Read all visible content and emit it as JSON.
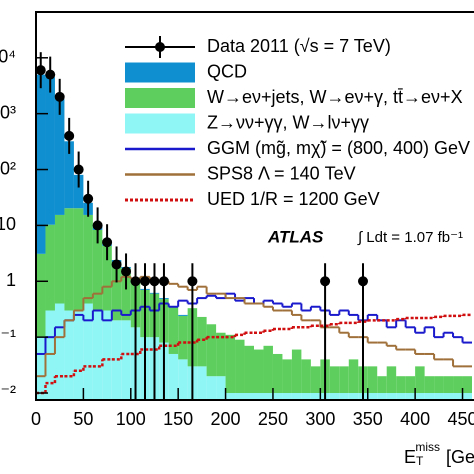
{
  "chart_data": {
    "type": "stacked_histogram",
    "bins": [
      0,
      10,
      20,
      30,
      40,
      50,
      60,
      70,
      80,
      90,
      100,
      110,
      120,
      130,
      140,
      150,
      160,
      170,
      180,
      190,
      200,
      210,
      220,
      230,
      240,
      250,
      260,
      270,
      280,
      290,
      300,
      310,
      320,
      330,
      340,
      350,
      360,
      370,
      380,
      390,
      400,
      410,
      420,
      430,
      440,
      450,
      460
    ],
    "series": [
      {
        "name": "QCD",
        "color": "#0f8fcf",
        "style": "stack",
        "values": [
          5000,
          4500,
          1800,
          300,
          60,
          10,
          2,
          0.5,
          0.2,
          0.1,
          0.05,
          0.03,
          0.02,
          0.02,
          0.01,
          0.01,
          0,
          0,
          0,
          0,
          0,
          0,
          0,
          0,
          0,
          0,
          0,
          0,
          0,
          0,
          0,
          0,
          0,
          0,
          0,
          0,
          0,
          0,
          0,
          0,
          0,
          0,
          0,
          0,
          0,
          0
        ]
      },
      {
        "name": "W→eν+jets, W→eν+γ, tt̄→eν+X",
        "color": "#5ecf5e",
        "style": "stack",
        "values": [
          3,
          10,
          15,
          20,
          20,
          15,
          8,
          4,
          2,
          1.5,
          0.8,
          0.6,
          0.5,
          0.4,
          0.3,
          0.2,
          0.3,
          0.2,
          0.15,
          0.1,
          0.1,
          0.08,
          0.06,
          0.05,
          0.06,
          0.04,
          0.03,
          0.05,
          0.03,
          0.02,
          0.03,
          0.02,
          0.02,
          0.03,
          0.02,
          0.02,
          0.01,
          0.02,
          0.01,
          0.01,
          0.02,
          0.01,
          0.01,
          0.01,
          0.01,
          0.01
        ]
      },
      {
        "name": "Z→νν+γγ, W→lν+γγ",
        "color": "#8ff5f5",
        "style": "stack",
        "values": [
          0.1,
          0.3,
          0.4,
          0.3,
          0.3,
          0.4,
          0.3,
          0.3,
          0.2,
          0.2,
          0.15,
          0.1,
          0.1,
          0.08,
          0.05,
          0.04,
          0.03,
          0.03,
          0.02,
          0.02,
          0.01,
          0.01,
          0.01,
          0.01,
          0.01,
          0.01,
          0.01,
          0.01,
          0.01,
          0.01,
          0.01,
          0.01,
          0.01,
          0.01,
          0.01,
          0.01,
          0.01,
          0.01,
          0.01,
          0.01,
          0.01,
          0.01,
          0.01,
          0.01,
          0.01,
          0.01
        ]
      },
      {
        "name": "GGM (mg̃, mχ̃) = (800, 400) GeV",
        "color": "#1a1acc",
        "style": "line",
        "values": [
          0.05,
          0.1,
          0.15,
          0.2,
          0.25,
          0.2,
          0.3,
          0.2,
          0.3,
          0.25,
          0.3,
          0.35,
          0.3,
          0.4,
          0.35,
          0.45,
          0.4,
          0.5,
          0.55,
          0.5,
          0.6,
          0.45,
          0.5,
          0.4,
          0.45,
          0.4,
          0.35,
          0.4,
          0.3,
          0.35,
          0.3,
          0.25,
          0.3,
          0.25,
          0.2,
          0.25,
          0.2,
          0.15,
          0.2,
          0.15,
          0.12,
          0.15,
          0.1,
          0.12,
          0.1,
          0.08
        ]
      },
      {
        "name": "SPS8 Λ = 140 TeV",
        "color": "#a0703a",
        "style": "line",
        "values": [
          0.02,
          0.05,
          0.1,
          0.2,
          0.3,
          0.5,
          0.6,
          0.8,
          1,
          1.2,
          1.1,
          1.2,
          1,
          1,
          0.9,
          0.8,
          0.7,
          0.8,
          0.6,
          0.6,
          0.5,
          0.5,
          0.4,
          0.4,
          0.35,
          0.3,
          0.3,
          0.25,
          0.2,
          0.2,
          0.15,
          0.15,
          0.12,
          0.1,
          0.1,
          0.08,
          0.08,
          0.07,
          0.06,
          0.06,
          0.05,
          0.05,
          0.04,
          0.04,
          0.03,
          0.03
        ]
      },
      {
        "name": "UED 1/R = 1200 GeV",
        "color": "#d01010",
        "style": "dotted",
        "values": [
          0.01,
          0.015,
          0.02,
          0.02,
          0.025,
          0.03,
          0.03,
          0.04,
          0.04,
          0.05,
          0.05,
          0.06,
          0.06,
          0.07,
          0.07,
          0.08,
          0.08,
          0.09,
          0.1,
          0.1,
          0.1,
          0.11,
          0.12,
          0.12,
          0.13,
          0.14,
          0.14,
          0.15,
          0.15,
          0.16,
          0.16,
          0.17,
          0.18,
          0.18,
          0.19,
          0.2,
          0.2,
          0.2,
          0.21,
          0.22,
          0.22,
          0.22,
          0.23,
          0.24,
          0.24,
          0.25
        ]
      }
    ],
    "data": {
      "name": "Data 2011 (√s = 7 TeV)",
      "color": "#000000",
      "x": [
        5,
        15,
        25,
        35,
        45,
        55,
        65,
        75,
        85,
        95,
        105,
        115,
        125,
        135,
        165,
        305,
        345
      ],
      "values": [
        6000,
        5000,
        2000,
        400,
        100,
        30,
        10,
        5,
        2,
        1.5,
        1,
        1,
        1,
        1,
        1,
        1,
        1
      ]
    },
    "xlim": [
      0,
      460
    ],
    "xticks": [
      0,
      50,
      100,
      150,
      200,
      250,
      300,
      350,
      400,
      450
    ],
    "ylim": [
      0.0075,
      66000
    ],
    "yticks": [
      {
        "value": 0.01,
        "label": "10⁻²"
      },
      {
        "value": 0.1,
        "label": "10⁻¹"
      },
      1,
      10,
      {
        "value": 100,
        "label": "10²"
      },
      {
        "value": 1000,
        "label": "10³"
      },
      {
        "value": 10000,
        "label": "10⁴"
      }
    ],
    "log_y": true,
    "x_label": {
      "main": "E",
      "sub": "T",
      "sup": "miss",
      "unit": "[GeV]"
    },
    "experiment": "ATLAS",
    "luminosity": "∫ Ldt = 1.07 fb⁻¹"
  }
}
